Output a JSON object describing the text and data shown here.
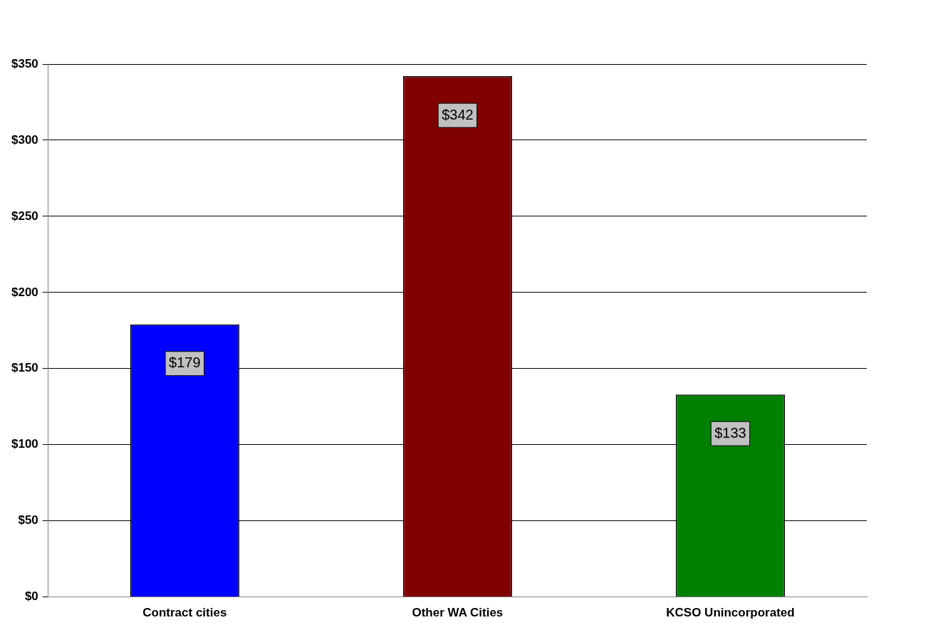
{
  "chart_data": {
    "type": "bar",
    "categories": [
      "Contract cities",
      "Other WA Cities",
      "KCSO Unincorporated"
    ],
    "values": [
      179,
      342,
      133
    ],
    "colors": [
      "#0000ff",
      "#800000",
      "#008000"
    ],
    "value_labels": [
      "$179",
      "$342",
      "$133"
    ],
    "ylim": [
      0,
      350
    ],
    "yticks": [
      {
        "value": 0,
        "label": "$0"
      },
      {
        "value": 50,
        "label": "$50"
      },
      {
        "value": 100,
        "label": "$100"
      },
      {
        "value": 150,
        "label": "$150"
      },
      {
        "value": 200,
        "label": "$200"
      },
      {
        "value": 250,
        "label": "$250"
      },
      {
        "value": 300,
        "label": "$300"
      },
      {
        "value": 350,
        "label": "$350"
      }
    ],
    "grid": "y",
    "legend": false
  }
}
